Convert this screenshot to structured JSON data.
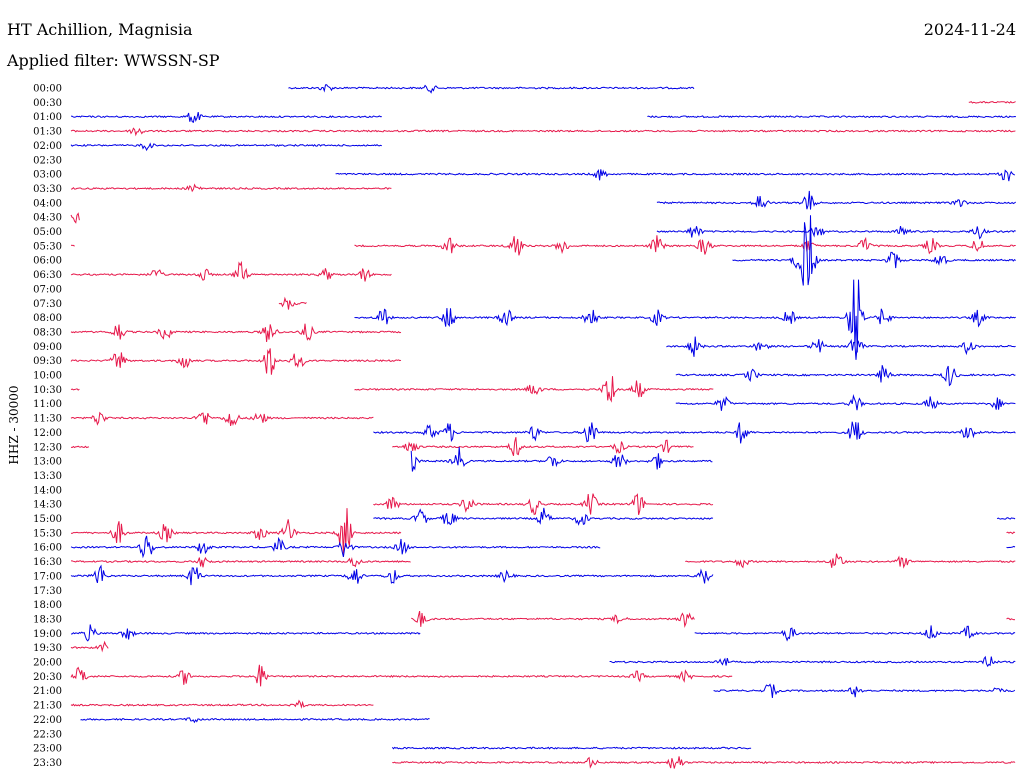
{
  "header": {
    "station": "HT Achillion, Magnisia",
    "date": "2024-11-24",
    "filter": "Applied filter: WWSSN-SP"
  },
  "chart_data": {
    "type": "line",
    "title": "HT Achillion, Magnisia",
    "ylabel": "HHZ - 30000",
    "colors": {
      "odd": "#0000e6",
      "even": "#e6194b"
    },
    "rows": [
      {
        "label": "00:00",
        "segments": [
          [
            0.23,
            0.66
          ]
        ],
        "events": [
          [
            0.27,
            4
          ],
          [
            0.38,
            4
          ]
        ]
      },
      {
        "label": "00:30",
        "segments": [
          [
            0.95,
            1.0
          ]
        ],
        "events": []
      },
      {
        "label": "01:00",
        "segments": [
          [
            0.0,
            0.33
          ],
          [
            0.61,
            1.0
          ]
        ],
        "events": [
          [
            0.13,
            8
          ]
        ]
      },
      {
        "label": "01:30",
        "segments": [
          [
            0.0,
            1.0
          ]
        ],
        "events": [
          [
            0.07,
            6
          ]
        ]
      },
      {
        "label": "02:00",
        "segments": [
          [
            0.0,
            0.33
          ]
        ],
        "events": [
          [
            0.08,
            4
          ]
        ]
      },
      {
        "label": "02:30",
        "segments": [],
        "events": []
      },
      {
        "label": "03:00",
        "segments": [
          [
            0.28,
            1.0
          ]
        ],
        "events": [
          [
            0.56,
            6
          ],
          [
            0.99,
            8
          ]
        ]
      },
      {
        "label": "03:30",
        "segments": [
          [
            0.0,
            0.34
          ]
        ],
        "events": [
          [
            0.13,
            5
          ]
        ]
      },
      {
        "label": "04:00",
        "segments": [
          [
            0.62,
            1.0
          ]
        ],
        "events": [
          [
            0.73,
            10
          ],
          [
            0.78,
            12
          ],
          [
            0.94,
            5
          ]
        ]
      },
      {
        "label": "04:30",
        "segments": [
          [
            0.0,
            0.01
          ]
        ],
        "events": [
          [
            0.005,
            5
          ]
        ]
      },
      {
        "label": "05:00",
        "segments": [
          [
            0.62,
            1.0
          ]
        ],
        "events": [
          [
            0.66,
            8
          ],
          [
            0.79,
            6
          ],
          [
            0.88,
            6
          ],
          [
            0.96,
            7
          ]
        ]
      },
      {
        "label": "05:30",
        "segments": [
          [
            0.0,
            0.005
          ],
          [
            0.3,
            1.0
          ]
        ],
        "events": [
          [
            0.4,
            10
          ],
          [
            0.47,
            16
          ],
          [
            0.52,
            8
          ],
          [
            0.62,
            10
          ],
          [
            0.67,
            10
          ],
          [
            0.78,
            6
          ],
          [
            0.84,
            8
          ],
          [
            0.91,
            8
          ],
          [
            0.96,
            8
          ]
        ]
      },
      {
        "label": "06:00",
        "segments": [
          [
            0.7,
            1.0
          ]
        ],
        "events": [
          [
            0.77,
            10
          ],
          [
            0.78,
            55
          ],
          [
            0.87,
            10
          ],
          [
            0.92,
            8
          ]
        ]
      },
      {
        "label": "06:30",
        "segments": [
          [
            0.0,
            0.34
          ]
        ],
        "events": [
          [
            0.09,
            6
          ],
          [
            0.14,
            7
          ],
          [
            0.18,
            13
          ],
          [
            0.27,
            6
          ],
          [
            0.31,
            7
          ]
        ]
      },
      {
        "label": "07:00",
        "segments": [],
        "events": []
      },
      {
        "label": "07:30",
        "segments": [
          [
            0.22,
            0.25
          ]
        ],
        "events": [
          [
            0.23,
            7
          ]
        ]
      },
      {
        "label": "08:00",
        "segments": [
          [
            0.3,
            1.0
          ]
        ],
        "events": [
          [
            0.33,
            10
          ],
          [
            0.4,
            14
          ],
          [
            0.46,
            10
          ],
          [
            0.55,
            12
          ],
          [
            0.62,
            8
          ],
          [
            0.76,
            8
          ],
          [
            0.83,
            55
          ],
          [
            0.86,
            10
          ],
          [
            0.96,
            8
          ]
        ]
      },
      {
        "label": "08:30",
        "segments": [
          [
            0.0,
            0.35
          ]
        ],
        "events": [
          [
            0.05,
            10
          ],
          [
            0.1,
            8
          ],
          [
            0.21,
            14
          ],
          [
            0.25,
            9
          ]
        ]
      },
      {
        "label": "09:00",
        "segments": [
          [
            0.63,
            1.0
          ]
        ],
        "events": [
          [
            0.66,
            10
          ],
          [
            0.73,
            8
          ],
          [
            0.79,
            8
          ],
          [
            0.83,
            14
          ],
          [
            0.95,
            8
          ]
        ]
      },
      {
        "label": "09:30",
        "segments": [
          [
            0.0,
            0.35
          ]
        ],
        "events": [
          [
            0.05,
            12
          ],
          [
            0.12,
            8
          ],
          [
            0.21,
            18
          ],
          [
            0.24,
            10
          ]
        ]
      },
      {
        "label": "10:00",
        "segments": [
          [
            0.64,
            1.0
          ]
        ],
        "events": [
          [
            0.72,
            6
          ],
          [
            0.86,
            10
          ],
          [
            0.93,
            12
          ]
        ]
      },
      {
        "label": "10:30",
        "segments": [
          [
            0.0,
            0.01
          ],
          [
            0.3,
            0.68
          ]
        ],
        "events": [
          [
            0.49,
            8
          ],
          [
            0.57,
            20
          ],
          [
            0.6,
            10
          ]
        ]
      },
      {
        "label": "11:00",
        "segments": [
          [
            0.64,
            1.0
          ]
        ],
        "events": [
          [
            0.69,
            8
          ],
          [
            0.83,
            8
          ],
          [
            0.91,
            7
          ],
          [
            0.98,
            6
          ]
        ]
      },
      {
        "label": "11:30",
        "segments": [
          [
            0.0,
            0.32
          ]
        ],
        "events": [
          [
            0.03,
            8
          ],
          [
            0.14,
            10
          ],
          [
            0.17,
            12
          ],
          [
            0.2,
            8
          ]
        ]
      },
      {
        "label": "12:00",
        "segments": [
          [
            0.32,
            1.0
          ]
        ],
        "events": [
          [
            0.38,
            8
          ],
          [
            0.4,
            10
          ],
          [
            0.49,
            8
          ],
          [
            0.55,
            16
          ],
          [
            0.71,
            12
          ],
          [
            0.83,
            16
          ],
          [
            0.95,
            10
          ]
        ]
      },
      {
        "label": "12:30",
        "segments": [
          [
            0.0,
            0.02
          ],
          [
            0.34,
            0.66
          ]
        ],
        "events": [
          [
            0.36,
            8
          ],
          [
            0.47,
            10
          ],
          [
            0.58,
            6
          ],
          [
            0.63,
            6
          ]
        ]
      },
      {
        "label": "13:00",
        "segments": [
          [
            0.36,
            0.68
          ]
        ],
        "events": [
          [
            0.36,
            12
          ],
          [
            0.41,
            14
          ],
          [
            0.51,
            8
          ],
          [
            0.58,
            10
          ],
          [
            0.62,
            8
          ]
        ]
      },
      {
        "label": "13:30",
        "segments": [],
        "events": []
      },
      {
        "label": "14:00",
        "segments": [],
        "events": []
      },
      {
        "label": "14:30",
        "segments": [
          [
            0.32,
            0.68
          ]
        ],
        "events": [
          [
            0.34,
            8
          ],
          [
            0.42,
            10
          ],
          [
            0.49,
            10
          ],
          [
            0.55,
            12
          ],
          [
            0.6,
            12
          ]
        ]
      },
      {
        "label": "15:00",
        "segments": [
          [
            0.32,
            0.68
          ],
          [
            0.98,
            1.0
          ]
        ],
        "events": [
          [
            0.37,
            10
          ],
          [
            0.4,
            10
          ],
          [
            0.5,
            10
          ],
          [
            0.54,
            8
          ]
        ]
      },
      {
        "label": "15:30",
        "segments": [
          [
            0.0,
            0.35
          ],
          [
            0.99,
            1.0
          ]
        ],
        "events": [
          [
            0.05,
            12
          ],
          [
            0.1,
            10
          ],
          [
            0.2,
            8
          ],
          [
            0.23,
            14
          ],
          [
            0.29,
            28
          ]
        ]
      },
      {
        "label": "16:00",
        "segments": [
          [
            0.0,
            0.56
          ],
          [
            0.99,
            1.0
          ]
        ],
        "events": [
          [
            0.08,
            16
          ],
          [
            0.14,
            8
          ],
          [
            0.22,
            8
          ],
          [
            0.29,
            12
          ],
          [
            0.35,
            8
          ]
        ]
      },
      {
        "label": "16:30",
        "segments": [
          [
            0.0,
            0.36
          ],
          [
            0.65,
            1.0
          ]
        ],
        "events": [
          [
            0.14,
            6
          ],
          [
            0.3,
            6
          ],
          [
            0.71,
            6
          ],
          [
            0.81,
            12
          ],
          [
            0.88,
            6
          ]
        ]
      },
      {
        "label": "17:00",
        "segments": [
          [
            0.0,
            0.68
          ]
        ],
        "events": [
          [
            0.03,
            12
          ],
          [
            0.13,
            12
          ],
          [
            0.3,
            12
          ],
          [
            0.34,
            8
          ],
          [
            0.46,
            6
          ],
          [
            0.67,
            10
          ]
        ]
      },
      {
        "label": "17:30",
        "segments": [],
        "events": []
      },
      {
        "label": "18:00",
        "segments": [],
        "events": []
      },
      {
        "label": "18:30",
        "segments": [
          [
            0.36,
            0.66
          ],
          [
            0.99,
            1.0
          ]
        ],
        "events": [
          [
            0.37,
            8
          ],
          [
            0.58,
            5
          ],
          [
            0.65,
            8
          ]
        ]
      },
      {
        "label": "19:00",
        "segments": [
          [
            0.0,
            0.37
          ],
          [
            0.66,
            1.0
          ]
        ],
        "events": [
          [
            0.02,
            8
          ],
          [
            0.06,
            6
          ],
          [
            0.76,
            8
          ],
          [
            0.91,
            8
          ],
          [
            0.95,
            7
          ]
        ]
      },
      {
        "label": "19:30",
        "segments": [
          [
            0.0,
            0.04
          ]
        ],
        "events": [
          [
            0.035,
            5
          ]
        ]
      },
      {
        "label": "20:00",
        "segments": [
          [
            0.57,
            1.0
          ]
        ],
        "events": [
          [
            0.69,
            6
          ],
          [
            0.97,
            8
          ]
        ]
      },
      {
        "label": "20:30",
        "segments": [
          [
            0.0,
            0.7
          ]
        ],
        "events": [
          [
            0.01,
            10
          ],
          [
            0.12,
            8
          ],
          [
            0.2,
            12
          ],
          [
            0.6,
            5
          ],
          [
            0.65,
            5
          ]
        ]
      },
      {
        "label": "21:00",
        "segments": [
          [
            0.68,
            1.0
          ]
        ],
        "events": [
          [
            0.74,
            8
          ],
          [
            0.83,
            6
          ],
          [
            0.98,
            4
          ]
        ]
      },
      {
        "label": "21:30",
        "segments": [
          [
            0.0,
            0.32
          ]
        ],
        "events": [
          [
            0.24,
            4
          ]
        ]
      },
      {
        "label": "22:00",
        "segments": [
          [
            0.01,
            0.38
          ]
        ],
        "events": [
          [
            0.13,
            3
          ]
        ]
      },
      {
        "label": "22:30",
        "segments": [],
        "events": []
      },
      {
        "label": "23:00",
        "segments": [
          [
            0.34,
            0.72
          ]
        ],
        "events": []
      },
      {
        "label": "23:30",
        "segments": [
          [
            0.34,
            1.0
          ]
        ],
        "events": [
          [
            0.55,
            5
          ],
          [
            0.64,
            12
          ]
        ]
      }
    ]
  }
}
